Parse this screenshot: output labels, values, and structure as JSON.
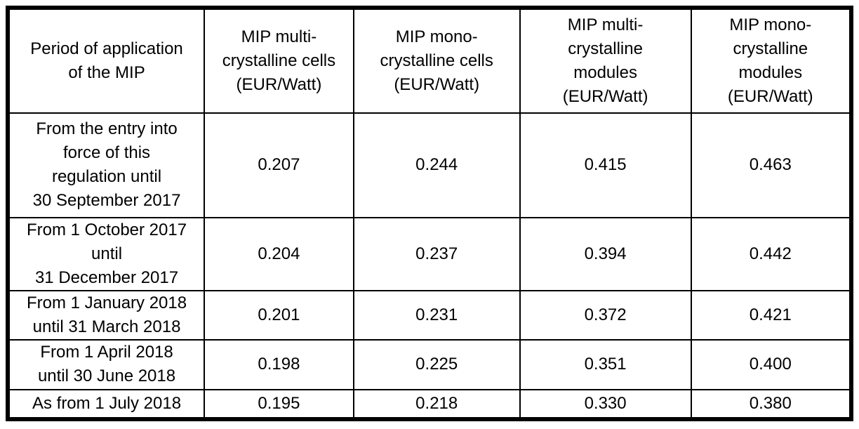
{
  "colors": {
    "border": "#000000",
    "text": "#000000",
    "background": "#ffffff"
  },
  "table": {
    "headers": [
      "Period of application\nof the MIP",
      "MIP multi-\ncrystalline cells\n(EUR/Watt)",
      "MIP mono-\ncrystalline cells\n(EUR/Watt)",
      "MIP multi-\ncrystalline\nmodules\n(EUR/Watt)",
      "MIP mono-\ncrystalline\nmodules\n(EUR/Watt)"
    ],
    "rows": [
      {
        "period": "From the entry into\nforce of this\nregulation until\n30 September 2017",
        "values": [
          "0.207",
          "0.244",
          "0.415",
          "0.463"
        ]
      },
      {
        "period": "From 1 October 2017\nuntil\n31 December 2017",
        "values": [
          "0.204",
          "0.237",
          "0.394",
          "0.442"
        ]
      },
      {
        "period": "From 1 January 2018\nuntil 31 March 2018",
        "values": [
          "0.201",
          "0.231",
          "0.372",
          "0.421"
        ]
      },
      {
        "period": "From 1 April 2018\nuntil 30 June 2018",
        "values": [
          "0.198",
          "0.225",
          "0.351",
          "0.400"
        ]
      },
      {
        "period": "As from 1 July 2018",
        "values": [
          "0.195",
          "0.218",
          "0.330",
          "0.380"
        ]
      }
    ]
  }
}
